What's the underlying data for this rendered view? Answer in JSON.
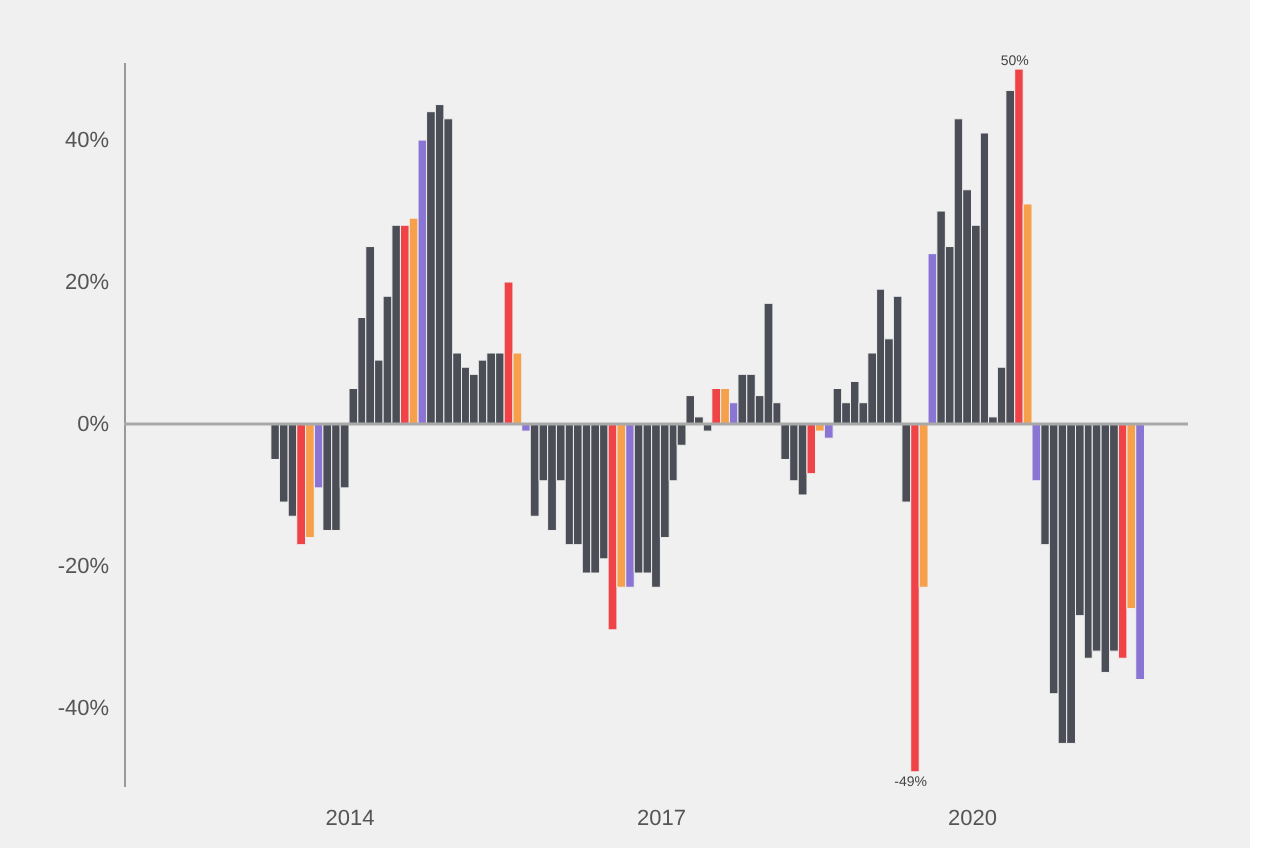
{
  "chart_data": {
    "type": "bar",
    "x": [
      "2013-04",
      "2013-05",
      "2013-06",
      "2013-07",
      "2013-08",
      "2013-09",
      "2013-10",
      "2013-11",
      "2013-12",
      "2014-01",
      "2014-02",
      "2014-03",
      "2014-04",
      "2014-05",
      "2014-06",
      "2014-07",
      "2014-08",
      "2014-09",
      "2014-10",
      "2014-11",
      "2014-12",
      "2015-01",
      "2015-02",
      "2015-03",
      "2015-04",
      "2015-05",
      "2015-06",
      "2015-07",
      "2015-08",
      "2015-09",
      "2015-10",
      "2015-11",
      "2015-12",
      "2016-01",
      "2016-02",
      "2016-03",
      "2016-04",
      "2016-05",
      "2016-06",
      "2016-07",
      "2016-08",
      "2016-09",
      "2016-10",
      "2016-11",
      "2016-12",
      "2017-01",
      "2017-02",
      "2017-03",
      "2017-04",
      "2017-05",
      "2017-06",
      "2017-07",
      "2017-08",
      "2017-09",
      "2017-10",
      "2017-11",
      "2017-12",
      "2018-01",
      "2018-02",
      "2018-03",
      "2018-04",
      "2018-05",
      "2018-06",
      "2018-07",
      "2018-08",
      "2018-09",
      "2018-10",
      "2018-11",
      "2018-12",
      "2019-01",
      "2019-02",
      "2019-03",
      "2019-04",
      "2019-05",
      "2019-06",
      "2019-07",
      "2019-08",
      "2019-09",
      "2019-10",
      "2019-11",
      "2019-12",
      "2020-01",
      "2020-02",
      "2020-03",
      "2020-04",
      "2020-05",
      "2020-06",
      "2020-07",
      "2020-08",
      "2020-09",
      "2020-10",
      "2020-11",
      "2020-12",
      "2021-01",
      "2021-02",
      "2021-03",
      "2021-04",
      "2021-05",
      "2021-06",
      "2021-07",
      "2021-08"
    ],
    "values": [
      -5,
      -11,
      -13,
      -17,
      -16,
      -9,
      -15,
      -15,
      -9,
      5,
      15,
      25,
      9,
      18,
      28,
      28,
      29,
      40,
      44,
      45,
      43,
      10,
      8,
      7,
      9,
      10,
      10,
      20,
      10,
      -1,
      -13,
      -8,
      -15,
      -8,
      -17,
      -17,
      -21,
      -21,
      -19,
      -29,
      -23,
      -23,
      -21,
      -21,
      -23,
      -16,
      -8,
      -3,
      4,
      1,
      -1,
      5,
      5,
      3,
      7,
      7,
      4,
      17,
      3,
      -5,
      -8,
      -10,
      -7,
      -1,
      -2,
      5,
      3,
      6,
      3,
      10,
      19,
      12,
      18,
      -11,
      -49,
      -23,
      24,
      30,
      25,
      43,
      33,
      28,
      41,
      1,
      8,
      47,
      50,
      31,
      -8,
      -17,
      -38,
      -45,
      -45,
      -27,
      -33,
      -32,
      -35,
      -32,
      -33,
      -26,
      -36
    ],
    "colors": [
      "#4b4e56",
      "#4b4e56",
      "#4b4e56",
      "#ef4348",
      "#f6a04c",
      "#8a74d4",
      "#4b4e56",
      "#4b4e56",
      "#4b4e56",
      "#4b4e56",
      "#4b4e56",
      "#4b4e56",
      "#4b4e56",
      "#4b4e56",
      "#4b4e56",
      "#ef4348",
      "#f6a04c",
      "#8a74d4",
      "#4b4e56",
      "#4b4e56",
      "#4b4e56",
      "#4b4e56",
      "#4b4e56",
      "#4b4e56",
      "#4b4e56",
      "#4b4e56",
      "#4b4e56",
      "#ef4348",
      "#f6a04c",
      "#8a74d4",
      "#4b4e56",
      "#4b4e56",
      "#4b4e56",
      "#4b4e56",
      "#4b4e56",
      "#4b4e56",
      "#4b4e56",
      "#4b4e56",
      "#4b4e56",
      "#ef4348",
      "#f6a04c",
      "#8a74d4",
      "#4b4e56",
      "#4b4e56",
      "#4b4e56",
      "#4b4e56",
      "#4b4e56",
      "#4b4e56",
      "#4b4e56",
      "#4b4e56",
      "#4b4e56",
      "#ef4348",
      "#f6a04c",
      "#8a74d4",
      "#4b4e56",
      "#4b4e56",
      "#4b4e56",
      "#4b4e56",
      "#4b4e56",
      "#4b4e56",
      "#4b4e56",
      "#4b4e56",
      "#ef4348",
      "#f6a04c",
      "#8a74d4",
      "#4b4e56",
      "#4b4e56",
      "#4b4e56",
      "#4b4e56",
      "#4b4e56",
      "#4b4e56",
      "#4b4e56",
      "#4b4e56",
      "#4b4e56",
      "#ef4348",
      "#f6a04c",
      "#8a74d4",
      "#4b4e56",
      "#4b4e56",
      "#4b4e56",
      "#4b4e56",
      "#4b4e56",
      "#4b4e56",
      "#4b4e56",
      "#4b4e56",
      "#4b4e56",
      "#ef4348",
      "#f6a04c",
      "#8a74d4",
      "#4b4e56",
      "#4b4e56",
      "#4b4e56",
      "#4b4e56",
      "#4b4e56",
      "#4b4e56",
      "#4b4e56",
      "#4b4e56",
      "#4b4e56",
      "#ef4348",
      "#f6a04c",
      "#8a74d4"
    ],
    "xlim": [
      "2011-11",
      "2022-02"
    ],
    "xticks": [
      "2014",
      "2017",
      "2020"
    ],
    "ylim": [
      -51,
      51
    ],
    "yticks": [
      {
        "value": -40,
        "label": "-40%"
      },
      {
        "value": -20,
        "label": "-20%"
      },
      {
        "value": 0,
        "label": "0%"
      },
      {
        "value": 20,
        "label": "20%"
      },
      {
        "value": 40,
        "label": "40%"
      }
    ],
    "ref_lines": [
      {
        "axis": "y",
        "value": 0,
        "color": "#a9a9a9"
      }
    ],
    "annotations": [
      {
        "text": "50%",
        "x": "2020-06",
        "y": 50
      },
      {
        "text": "-49%",
        "x": "2019-06",
        "y": -49
      }
    ],
    "grid": false
  }
}
